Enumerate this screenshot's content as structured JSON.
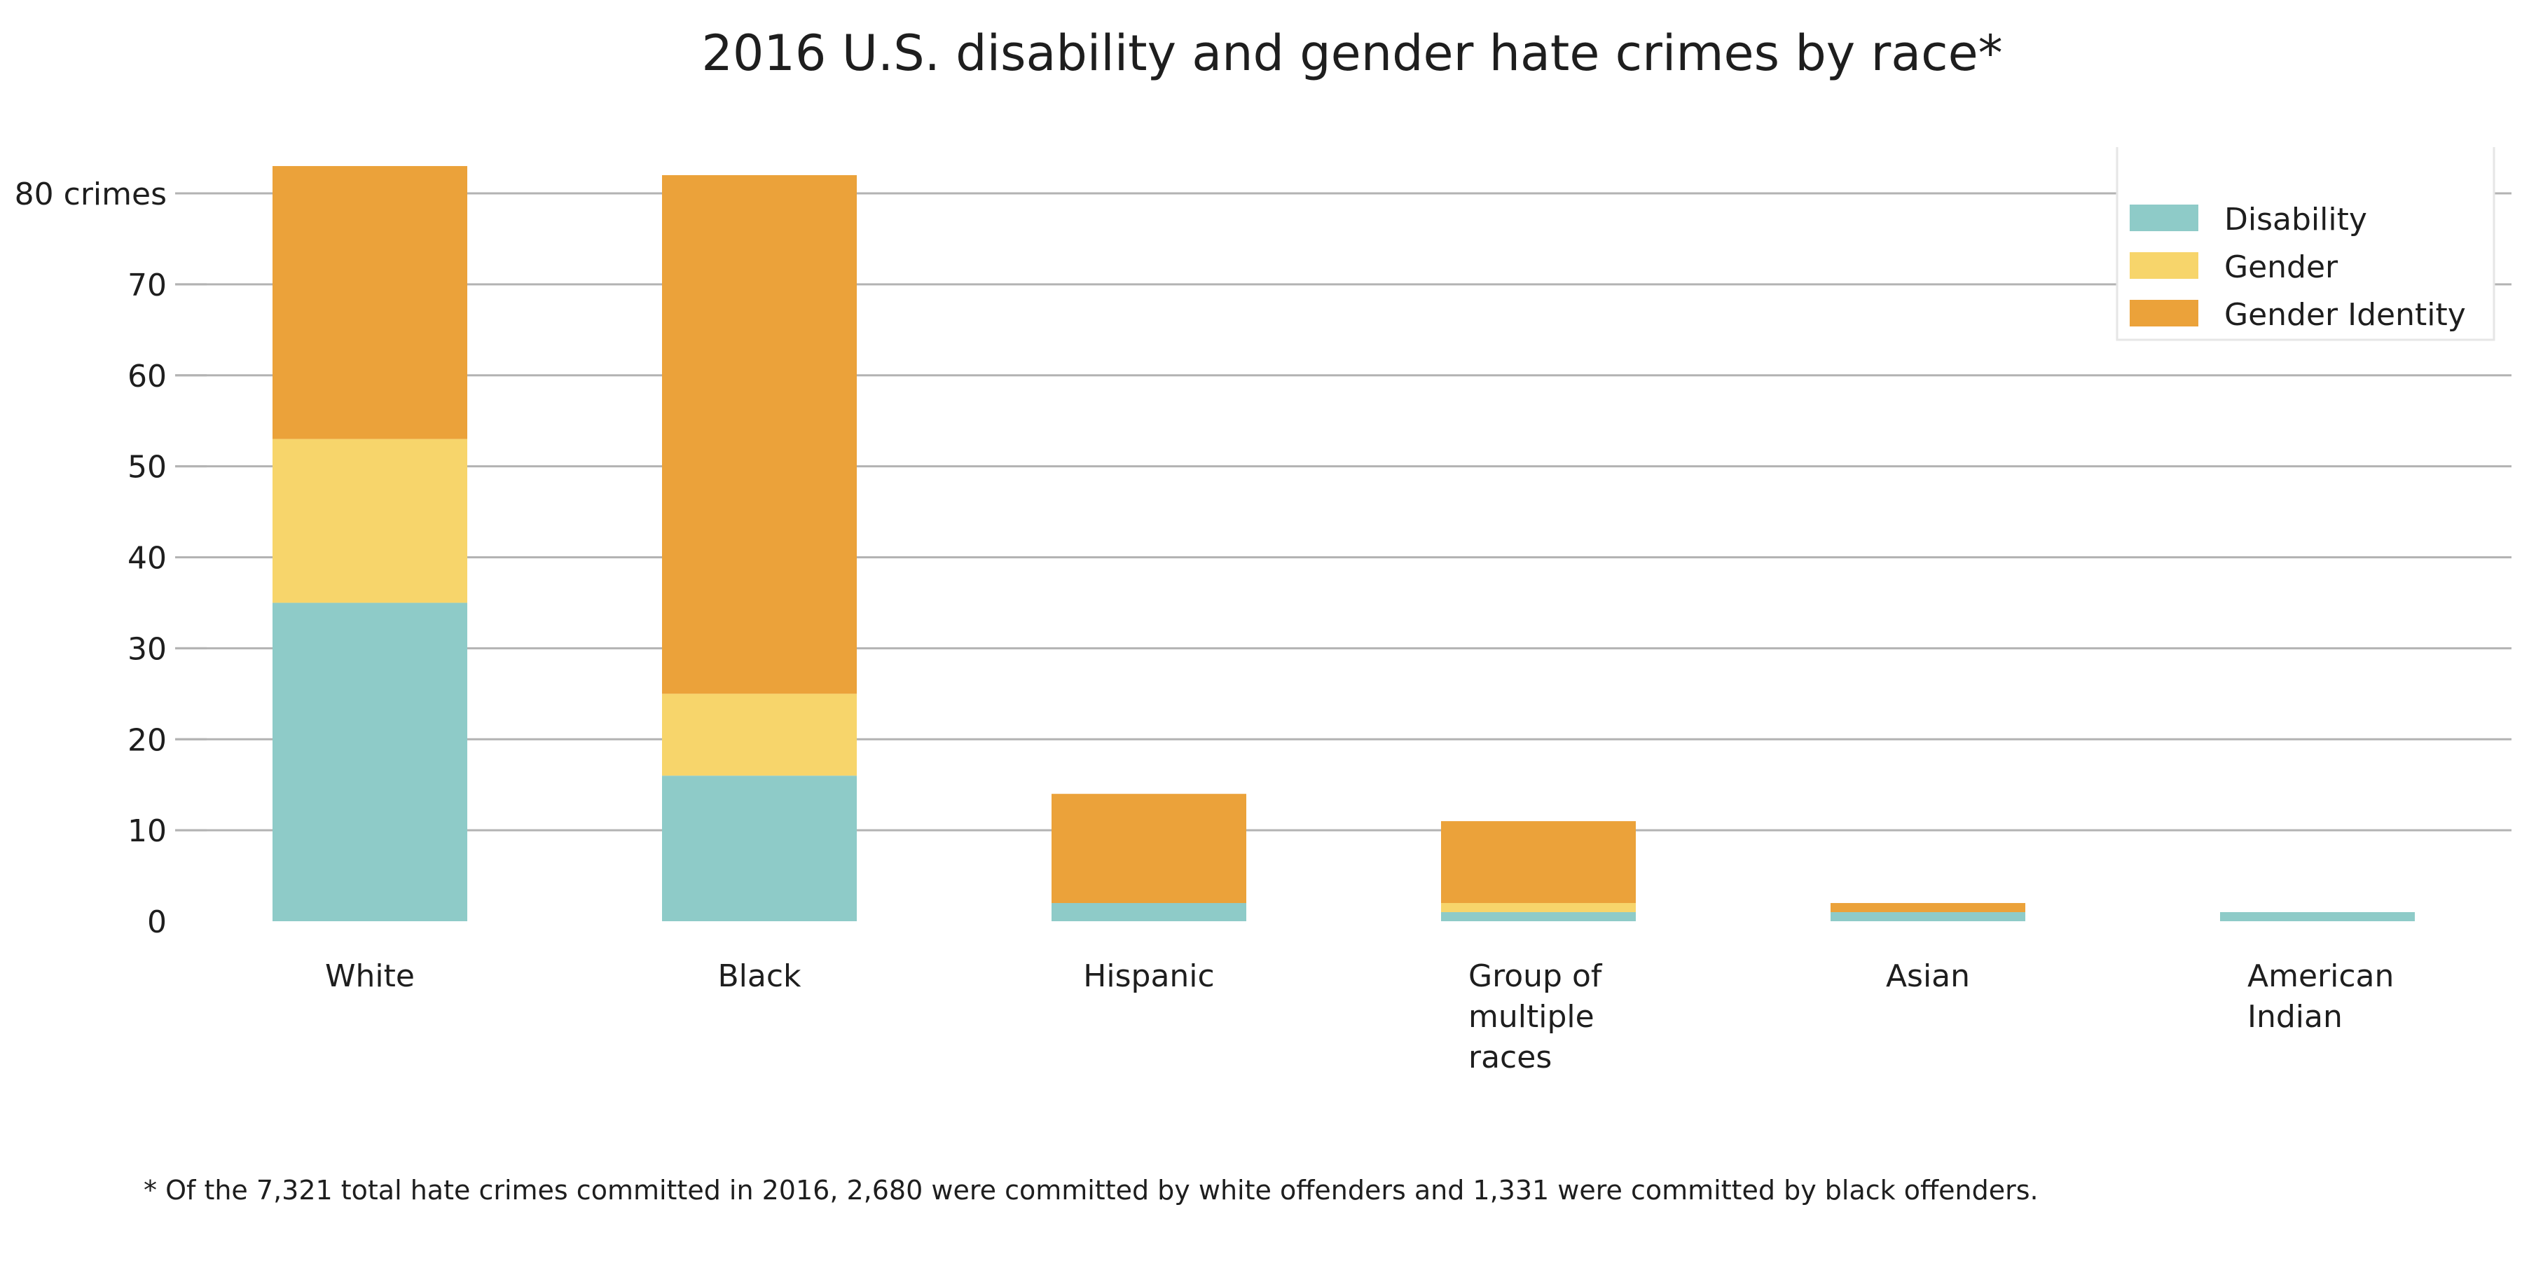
{
  "chart_data": {
    "type": "bar",
    "stacked": true,
    "title": "2016 U.S. disability and gender hate crimes by race*",
    "xlabel": "",
    "ylabel": "",
    "y_top_tick_label": "80 crimes",
    "yticks": [
      0,
      10,
      20,
      30,
      40,
      50,
      60,
      70,
      80
    ],
    "ylim": [
      0,
      80
    ],
    "grid": true,
    "legend_position": "top-right",
    "categories": [
      [
        "White"
      ],
      [
        "Black"
      ],
      [
        "Hispanic"
      ],
      [
        "Group of",
        "multiple",
        "races"
      ],
      [
        "Asian"
      ],
      [
        "American",
        "Indian"
      ]
    ],
    "series": [
      {
        "name": "Disability",
        "color": "#8ecbc8",
        "values": [
          35,
          16,
          2,
          1,
          1,
          1
        ]
      },
      {
        "name": "Gender",
        "color": "#f7d56b",
        "values": [
          18,
          9,
          0,
          1,
          0,
          0
        ]
      },
      {
        "name": "Gender Identity",
        "color": "#eba23a",
        "values": [
          30,
          57,
          12,
          9,
          1,
          0
        ]
      }
    ],
    "footnote": "* Of the 7,321 total hate crimes committed in 2016, 2,680 were committed by white offenders and 1,331 were committed by black offenders."
  }
}
